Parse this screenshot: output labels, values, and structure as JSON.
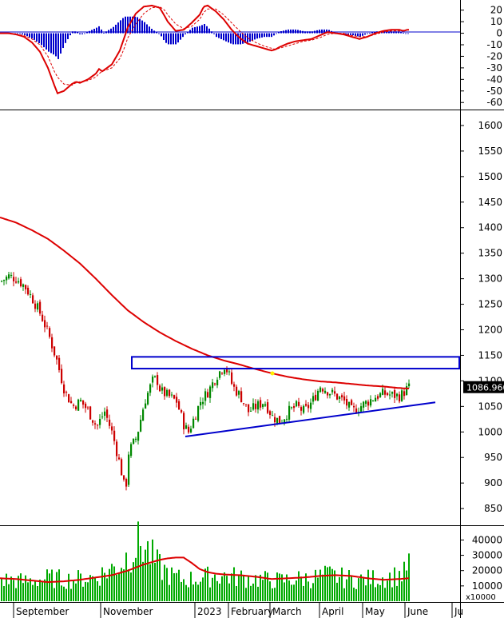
{
  "chart_data": [
    {
      "panel": "macd",
      "type": "bar",
      "y_ticks": [
        "20",
        "10",
        "0",
        "-10",
        "-20",
        "-30",
        "-40",
        "-50",
        "-60"
      ],
      "y_tick_values": [
        20,
        10,
        0,
        -10,
        -20,
        -30,
        -40,
        -50,
        -60
      ],
      "ylim": [
        -64,
        26
      ],
      "histogram_color": "#0000cc",
      "macd_line_color": "#dd0000",
      "signal_line_color": "#dd0000",
      "anchors": {
        "x": [
          0,
          10,
          20,
          30,
          40,
          50,
          60,
          68,
          72,
          80,
          90,
          95,
          100,
          110,
          120,
          124,
          128,
          140,
          150,
          155,
          160,
          170,
          180,
          190,
          200,
          206,
          210,
          220,
          230,
          240,
          250,
          255,
          260,
          270,
          280,
          290,
          300,
          310,
          320,
          330,
          340,
          345,
          350,
          360,
          370,
          380,
          390,
          400,
          410,
          420,
          430,
          440,
          450,
          460,
          470,
          480,
          490,
          500,
          505,
          510
        ],
        "macd": [
          0,
          0,
          -1,
          -3,
          -8,
          -16,
          -30,
          -45,
          -52,
          -50,
          -44,
          -42,
          -43,
          -40,
          -35,
          -31,
          -33,
          -27,
          -15,
          -5,
          5,
          17,
          23,
          24,
          22,
          15,
          10,
          2,
          3,
          9,
          16,
          23,
          24,
          19,
          12,
          3,
          -4,
          -9,
          -11,
          -13,
          -15,
          -14,
          -12,
          -9,
          -7,
          -6,
          -5,
          -2,
          1,
          0,
          -1,
          -3,
          -5,
          -3,
          0,
          2,
          3,
          3,
          2,
          3
        ],
        "signal": [
          0,
          0,
          -1,
          -2,
          -5,
          -10,
          -20,
          -33,
          -38,
          -44,
          -45,
          -43,
          -42,
          -41,
          -38,
          -35,
          -33,
          -30,
          -22,
          -14,
          -4,
          8,
          17,
          22,
          23,
          20,
          16,
          8,
          4,
          6,
          12,
          18,
          21,
          21,
          16,
          9,
          2,
          -4,
          -8,
          -11,
          -13,
          -14,
          -13,
          -11,
          -9,
          -7,
          -6,
          -4,
          -1,
          0,
          0,
          -2,
          -3,
          -3,
          -1,
          1,
          2,
          2,
          2,
          3
        ]
      }
    },
    {
      "panel": "price",
      "type": "candlestick",
      "y_ticks": [
        "1600",
        "1550",
        "1500",
        "1450",
        "1400",
        "1350",
        "1300",
        "1250",
        "1200",
        "1150",
        "1100",
        "1050",
        "1000",
        "950",
        "900",
        "850"
      ],
      "y_tick_values": [
        1600,
        1550,
        1500,
        1450,
        1400,
        1350,
        1300,
        1250,
        1200,
        1150,
        1100,
        1050,
        1000,
        950,
        900,
        850
      ],
      "ylim": [
        822,
        1625
      ],
      "last_price": "1086.960",
      "up_color": "#008800",
      "down_color": "#cc0000",
      "ma_color": "#dd0000",
      "trendline_color": "#0000cc",
      "resistance_zone": {
        "low": 1124,
        "high": 1147
      },
      "trendline": {
        "x1": 232,
        "y1": 991,
        "x2": 545,
        "y2": 1058
      },
      "close_anchors": {
        "x": [
          0,
          10,
          20,
          30,
          40,
          50,
          60,
          70,
          80,
          90,
          100,
          110,
          120,
          130,
          140,
          150,
          156,
          160,
          170,
          180,
          190,
          195,
          200,
          210,
          220,
          230,
          235,
          240,
          250,
          260,
          270,
          280,
          285,
          290,
          300,
          310,
          320,
          330,
          340,
          350,
          360,
          370,
          380,
          390,
          400,
          410,
          420,
          430,
          440,
          450,
          460,
          470,
          480,
          490,
          500,
          510
        ],
        "close": [
          1295,
          1305,
          1300,
          1285,
          1260,
          1230,
          1190,
          1140,
          1080,
          1050,
          1060,
          1040,
          1010,
          1040,
          995,
          930,
          880,
          960,
          990,
          1060,
          1100,
          1105,
          1080,
          1070,
          1060,
          1010,
          1000,
          1020,
          1060,
          1080,
          1110,
          1130,
          1115,
          1090,
          1070,
          1040,
          1050,
          1060,
          1030,
          1020,
          1040,
          1050,
          1040,
          1060,
          1090,
          1080,
          1070,
          1060,
          1040,
          1050,
          1060,
          1070,
          1075,
          1072,
          1070,
          1087
        ]
      },
      "ma_anchors": {
        "x": [
          0,
          20,
          40,
          60,
          80,
          100,
          120,
          140,
          160,
          180,
          200,
          220,
          240,
          260,
          280,
          300,
          320,
          340,
          360,
          380,
          400,
          420,
          440,
          460,
          480,
          500,
          512
        ],
        "value": [
          1420,
          1410,
          1395,
          1378,
          1355,
          1330,
          1300,
          1268,
          1238,
          1215,
          1195,
          1178,
          1163,
          1150,
          1140,
          1132,
          1123,
          1115,
          1108,
          1103,
          1099,
          1097,
          1094,
          1091,
          1089,
          1086,
          1085
        ]
      }
    },
    {
      "panel": "volume",
      "type": "bar",
      "unit": "x10000",
      "y_ticks": [
        "40000",
        "30000",
        "20000",
        "10000"
      ],
      "y_tick_values": [
        40000,
        30000,
        20000,
        10000
      ],
      "ylim": [
        0,
        47000
      ],
      "bar_color": "#00aa00",
      "ma_color": "#dd0000",
      "bar_anchors": {
        "x": [
          0,
          30,
          60,
          90,
          120,
          150,
          165,
          175,
          185,
          195,
          205,
          215,
          230,
          250,
          270,
          290,
          310,
          330,
          350,
          370,
          390,
          410,
          430,
          450,
          470,
          490,
          505,
          510
        ],
        "value": [
          14000,
          13000,
          15000,
          14000,
          16000,
          24000,
          34000,
          38000,
          32000,
          24000,
          20000,
          16000,
          14000,
          15000,
          17000,
          16000,
          15000,
          14000,
          13500,
          14500,
          15000,
          17000,
          15000,
          14000,
          15000,
          16000,
          18000,
          26000
        ]
      },
      "ma_anchors": {
        "x": [
          0,
          20,
          40,
          60,
          80,
          100,
          120,
          140,
          160,
          180,
          200,
          210,
          220,
          230,
          240,
          250,
          260,
          270,
          280,
          300,
          320,
          340,
          360,
          380,
          400,
          420,
          440,
          460,
          480,
          500,
          512
        ],
        "value": [
          15000,
          14500,
          13500,
          12500,
          13000,
          14000,
          15500,
          17000,
          20000,
          24000,
          27000,
          28000,
          28500,
          28500,
          25000,
          21000,
          19000,
          18000,
          17500,
          17000,
          16000,
          14500,
          15000,
          15500,
          16500,
          17000,
          16500,
          15000,
          14000,
          14500,
          15000
        ]
      }
    }
  ],
  "x_axis": {
    "months": [
      "September",
      "November",
      "2023",
      "February",
      "March",
      "April",
      "May",
      "June",
      "Ju"
    ]
  }
}
